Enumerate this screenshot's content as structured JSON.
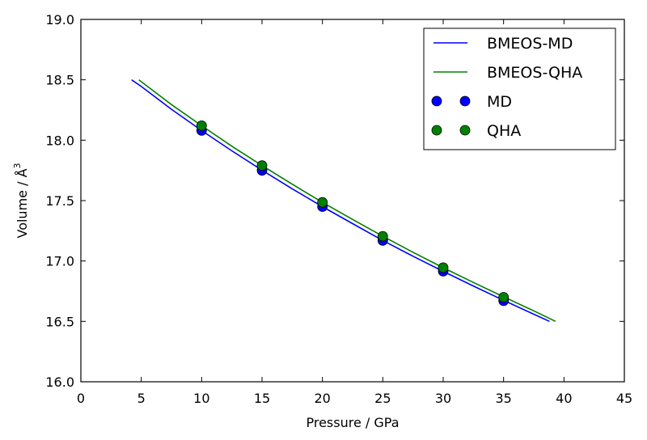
{
  "chart_data": {
    "type": "line",
    "title": "",
    "xlabel": "Pressure / GPa",
    "ylabel": "Volume / Å³",
    "ylabel_parts": {
      "text": "Volume / Å",
      "superscript": "3"
    },
    "xlim": [
      0,
      45
    ],
    "ylim": [
      16.0,
      19.0
    ],
    "x_ticks": [
      0,
      5,
      10,
      15,
      20,
      25,
      30,
      35,
      40,
      45
    ],
    "x_tick_labels": [
      "0",
      "5",
      "10",
      "15",
      "20",
      "25",
      "30",
      "35",
      "40",
      "45"
    ],
    "y_ticks": [
      16.0,
      16.5,
      17.0,
      17.5,
      18.0,
      18.5,
      19.0
    ],
    "y_tick_labels": [
      "16.0",
      "16.5",
      "17.0",
      "17.5",
      "18.0",
      "18.5",
      "19.0"
    ],
    "grid": false,
    "legend_position": "top-right",
    "series": [
      {
        "name": "BMEOS-MD",
        "kind": "line",
        "color": "#0000ff",
        "x": [
          4.2,
          5,
          7.5,
          10,
          12.5,
          15,
          17.5,
          20,
          22.5,
          25,
          27.5,
          30,
          32.5,
          35,
          37.5,
          38.8
        ],
        "y": [
          18.5,
          18.445,
          18.256,
          18.08,
          17.912,
          17.752,
          17.598,
          17.45,
          17.309,
          17.17,
          17.039,
          16.914,
          16.793,
          16.674,
          16.559,
          16.5
        ]
      },
      {
        "name": "BMEOS-QHA",
        "kind": "line",
        "color": "#008000",
        "x": [
          4.8,
          7.5,
          10,
          12.5,
          15,
          17.5,
          20,
          22.5,
          25,
          27.5,
          30,
          32.5,
          35,
          37.5,
          39.3
        ],
        "y": [
          18.5,
          18.295,
          18.12,
          17.95,
          17.79,
          17.636,
          17.485,
          17.344,
          17.205,
          17.072,
          16.944,
          16.822,
          16.703,
          16.587,
          16.5
        ]
      },
      {
        "name": "MD",
        "kind": "scatter",
        "color": "#0000ff",
        "x": [
          10,
          15,
          20,
          25,
          30,
          35
        ],
        "y": [
          18.08,
          17.75,
          17.45,
          17.17,
          16.915,
          16.67
        ]
      },
      {
        "name": "QHA",
        "kind": "scatter",
        "color": "#008000",
        "x": [
          10,
          15,
          20,
          25,
          30,
          35
        ],
        "y": [
          18.12,
          17.79,
          17.485,
          17.205,
          16.945,
          16.7
        ]
      }
    ]
  }
}
